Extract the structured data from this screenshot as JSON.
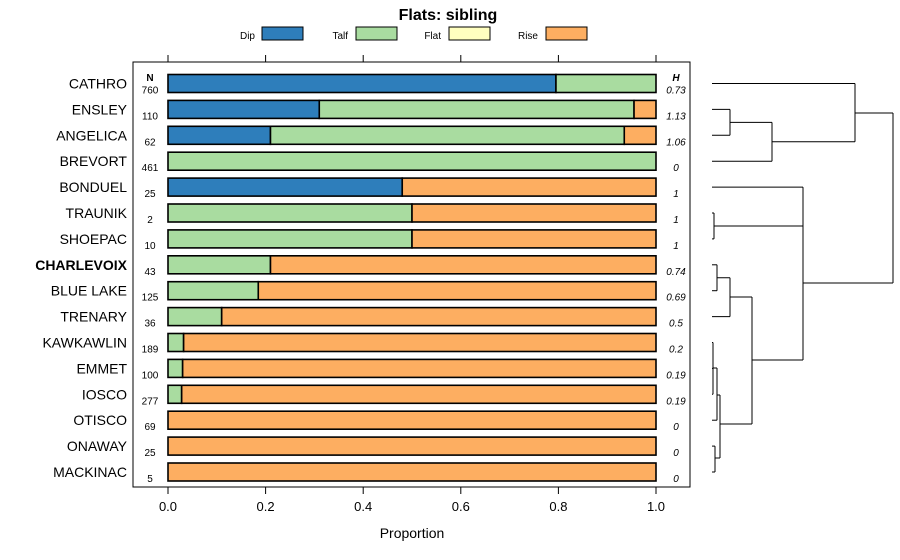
{
  "chart_data": {
    "type": "stacked-horizontal-bar",
    "title": "Flats: sibling",
    "xlabel": "Proportion",
    "xlim": [
      0,
      1
    ],
    "x_ticks": [
      "0.0",
      "0.2",
      "0.4",
      "0.6",
      "0.8",
      "1.0"
    ],
    "x_tick_values": [
      0,
      0.2,
      0.4,
      0.6,
      0.8,
      1.0
    ],
    "n_header": "N",
    "h_header": "H",
    "legend": [
      {
        "name": "Dip",
        "color": "#2E7EBB"
      },
      {
        "name": "Talf",
        "color": "#A9DCA0"
      },
      {
        "name": "Flat",
        "color": "#FFFFBF"
      },
      {
        "name": "Rise",
        "color": "#FDAE61"
      }
    ],
    "series_colors": {
      "Dip": "#2E7EBB",
      "Talf": "#A9DCA0",
      "Flat": "#FFFFBF",
      "Rise": "#FDAE61"
    },
    "rows": [
      {
        "label": "CATHRO",
        "bold": false,
        "n": "760",
        "h": "0.73",
        "Dip": 0.795,
        "Talf": 0.205,
        "Flat": 0,
        "Rise": 0
      },
      {
        "label": "ENSLEY",
        "bold": false,
        "n": "110",
        "h": "1.13",
        "Dip": 0.31,
        "Talf": 0.645,
        "Flat": 0,
        "Rise": 0.045
      },
      {
        "label": "ANGELICA",
        "bold": false,
        "n": "62",
        "h": "1.06",
        "Dip": 0.21,
        "Talf": 0.725,
        "Flat": 0,
        "Rise": 0.065
      },
      {
        "label": "BREVORT",
        "bold": false,
        "n": "461",
        "h": "0",
        "Dip": 0,
        "Talf": 1.0,
        "Flat": 0,
        "Rise": 0
      },
      {
        "label": "BONDUEL",
        "bold": false,
        "n": "25",
        "h": "1",
        "Dip": 0.48,
        "Talf": 0,
        "Flat": 0,
        "Rise": 0.52
      },
      {
        "label": "TRAUNIK",
        "bold": false,
        "n": "2",
        "h": "1",
        "Dip": 0,
        "Talf": 0.5,
        "Flat": 0,
        "Rise": 0.5
      },
      {
        "label": "SHOEPAC",
        "bold": false,
        "n": "10",
        "h": "1",
        "Dip": 0,
        "Talf": 0.5,
        "Flat": 0,
        "Rise": 0.5
      },
      {
        "label": "CHARLEVOIX",
        "bold": true,
        "n": "43",
        "h": "0.74",
        "Dip": 0,
        "Talf": 0.21,
        "Flat": 0,
        "Rise": 0.79
      },
      {
        "label": "BLUE LAKE",
        "bold": false,
        "n": "125",
        "h": "0.69",
        "Dip": 0,
        "Talf": 0.185,
        "Flat": 0,
        "Rise": 0.815
      },
      {
        "label": "TRENARY",
        "bold": false,
        "n": "36",
        "h": "0.5",
        "Dip": 0,
        "Talf": 0.11,
        "Flat": 0,
        "Rise": 0.89
      },
      {
        "label": "KAWKAWLIN",
        "bold": false,
        "n": "189",
        "h": "0.2",
        "Dip": 0,
        "Talf": 0.032,
        "Flat": 0,
        "Rise": 0.968
      },
      {
        "label": "EMMET",
        "bold": false,
        "n": "100",
        "h": "0.19",
        "Dip": 0,
        "Talf": 0.03,
        "Flat": 0,
        "Rise": 0.97
      },
      {
        "label": "IOSCO",
        "bold": false,
        "n": "277",
        "h": "0.19",
        "Dip": 0,
        "Talf": 0.028,
        "Flat": 0,
        "Rise": 0.972
      },
      {
        "label": "OTISCO",
        "bold": false,
        "n": "69",
        "h": "0",
        "Dip": 0,
        "Talf": 0,
        "Flat": 0,
        "Rise": 1.0
      },
      {
        "label": "ONAWAY",
        "bold": false,
        "n": "25",
        "h": "0",
        "Dip": 0,
        "Talf": 0,
        "Flat": 0,
        "Rise": 1.0
      },
      {
        "label": "MACKINAC",
        "bold": false,
        "n": "5",
        "h": "0",
        "Dip": 0,
        "Talf": 0,
        "Flat": 0,
        "Rise": 1.0
      }
    ],
    "dendrogram": "hierarchical clustering of the rows (drawn at right)"
  }
}
